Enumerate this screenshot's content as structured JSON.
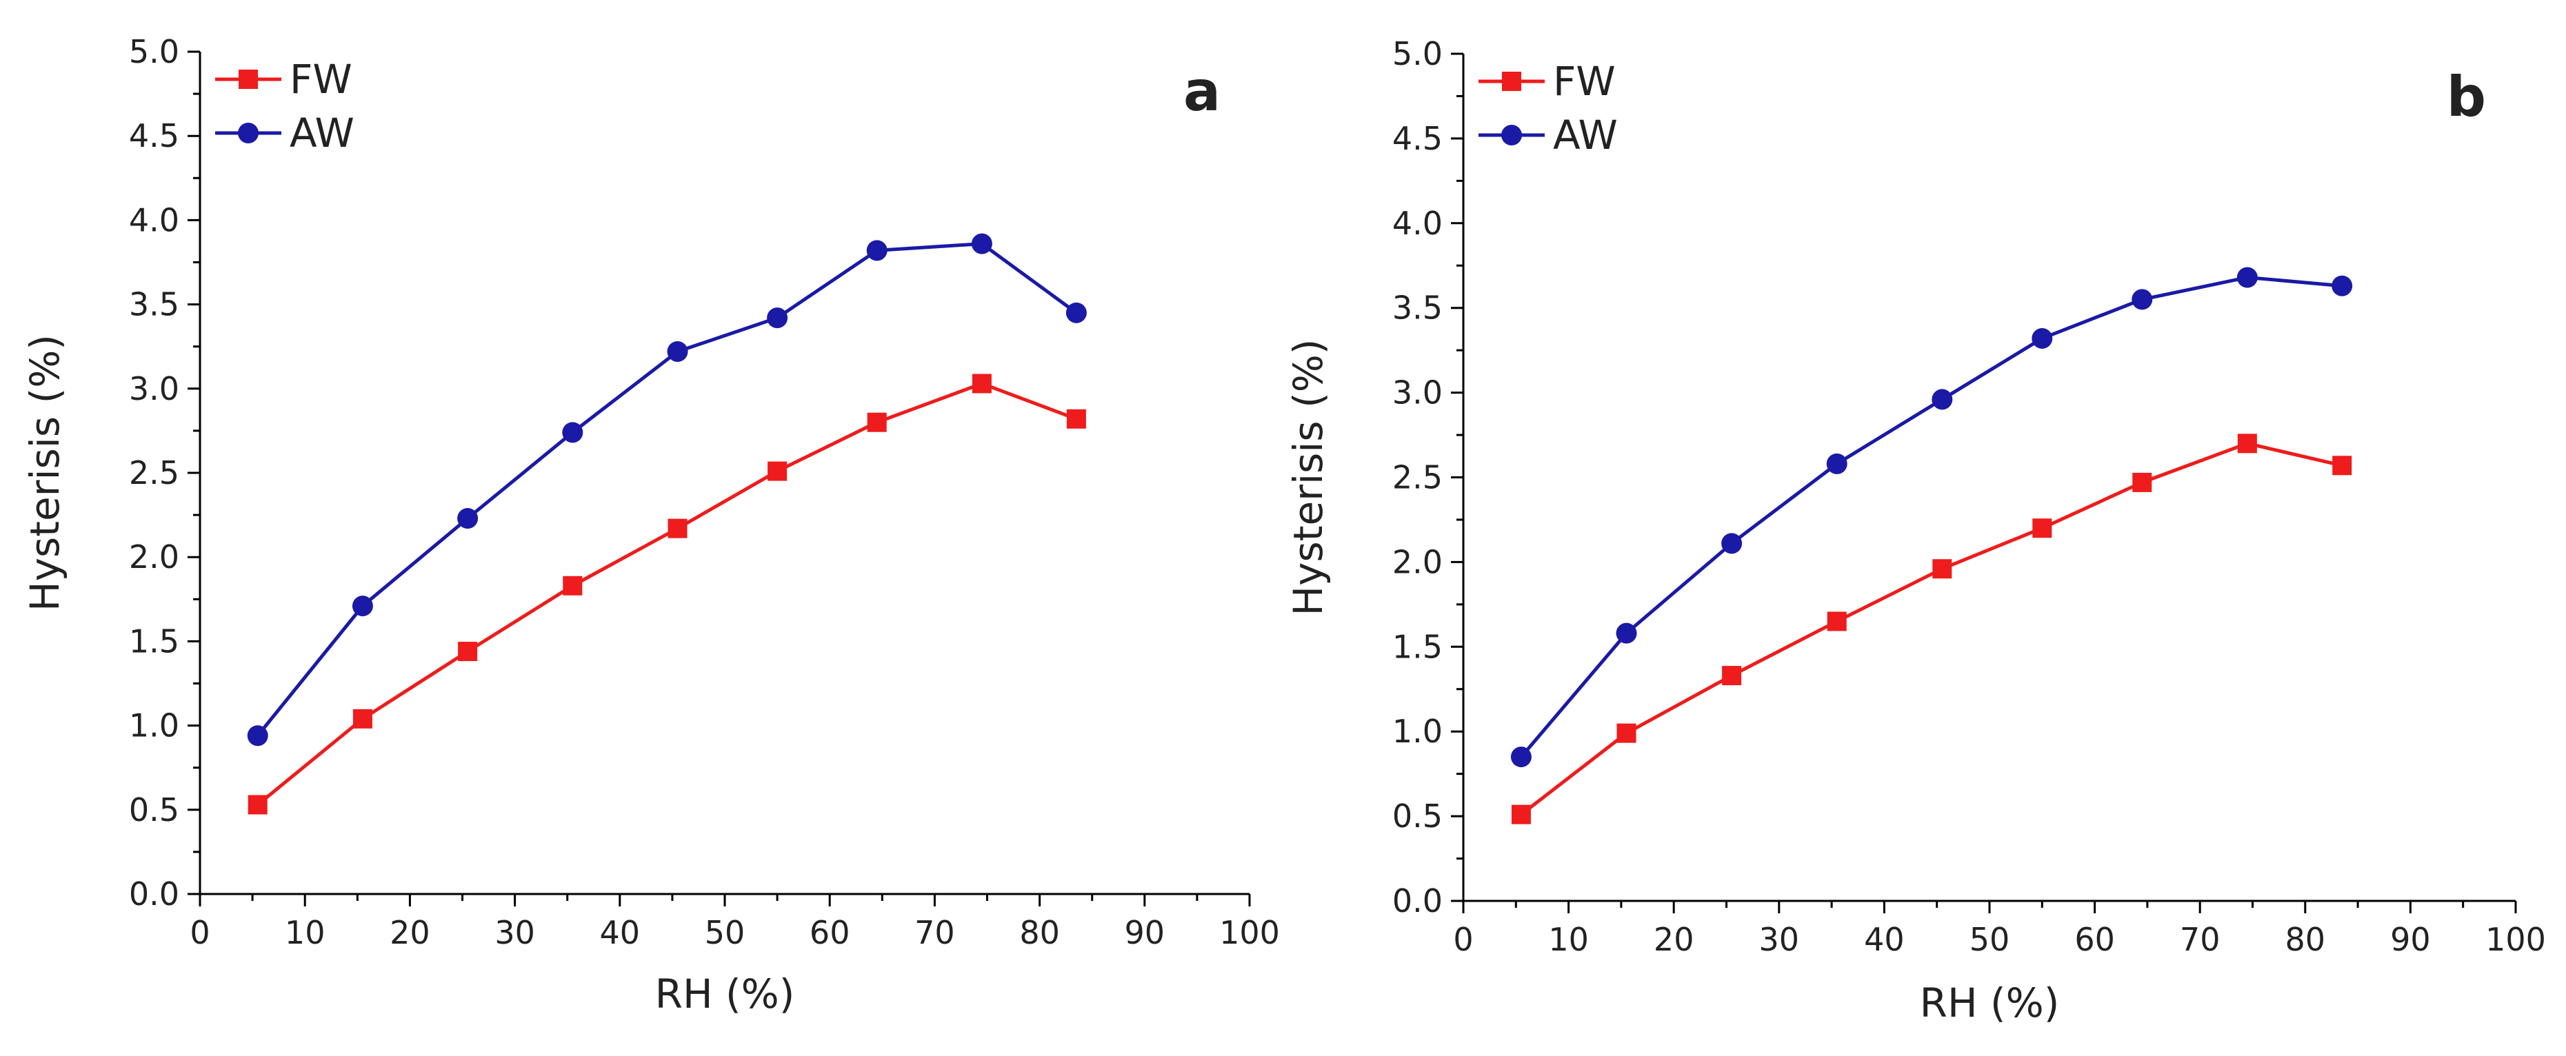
{
  "figure": {
    "panels": [
      "a",
      "b"
    ]
  },
  "colors": {
    "FW": "#ee1c1c",
    "AW": "#1a1aa6",
    "axis": "#000000",
    "text": "#222222"
  },
  "chart_data": [
    {
      "type": "line",
      "panel_label": "a",
      "xlabel": "RH (%)",
      "ylabel": "Hysterisis (%)",
      "xlim": [
        0,
        100
      ],
      "ylim": [
        0,
        5.0
      ],
      "xticks": [
        "0",
        "10",
        "20",
        "30",
        "40",
        "50",
        "60",
        "70",
        "80",
        "90",
        "100"
      ],
      "yticks": [
        "0.0",
        "0.5",
        "1.0",
        "1.5",
        "2.0",
        "2.5",
        "3.0",
        "3.5",
        "4.0",
        "4.5",
        "5.0"
      ],
      "legend_position": "top-left",
      "grid": false,
      "series": [
        {
          "name": "FW",
          "marker": "square",
          "x": [
            5.5,
            15.5,
            25.5,
            35.5,
            45.5,
            55,
            64.5,
            74.5,
            83.5
          ],
          "y": [
            0.53,
            1.04,
            1.44,
            1.83,
            2.17,
            2.51,
            2.8,
            3.03,
            2.82
          ]
        },
        {
          "name": "AW",
          "marker": "circle",
          "x": [
            5.5,
            15.5,
            25.5,
            35.5,
            45.5,
            55,
            64.5,
            74.5,
            83.5
          ],
          "y": [
            0.94,
            1.71,
            2.23,
            2.74,
            3.22,
            3.42,
            3.82,
            3.86,
            3.45
          ]
        }
      ]
    },
    {
      "type": "line",
      "panel_label": "b",
      "xlabel": "RH (%)",
      "ylabel": "Hysterisis (%)",
      "xlim": [
        0,
        100
      ],
      "ylim": [
        0,
        5.0
      ],
      "xticks": [
        "0",
        "10",
        "20",
        "30",
        "40",
        "50",
        "60",
        "70",
        "80",
        "90",
        "100"
      ],
      "yticks": [
        "0.0",
        "0.5",
        "1.0",
        "1.5",
        "2.0",
        "2.5",
        "3.0",
        "3.5",
        "4.0",
        "4.5",
        "5.0"
      ],
      "legend_position": "top-left",
      "grid": false,
      "series": [
        {
          "name": "FW",
          "marker": "square",
          "x": [
            5.5,
            15.5,
            25.5,
            35.5,
            45.5,
            55,
            64.5,
            74.5,
            83.5
          ],
          "y": [
            0.51,
            0.99,
            1.33,
            1.65,
            1.96,
            2.2,
            2.47,
            2.7,
            2.57
          ]
        },
        {
          "name": "AW",
          "marker": "circle",
          "x": [
            5.5,
            15.5,
            25.5,
            35.5,
            45.5,
            55,
            64.5,
            74.5,
            83.5
          ],
          "y": [
            0.85,
            1.58,
            2.11,
            2.58,
            2.96,
            3.32,
            3.55,
            3.68,
            3.63
          ]
        }
      ]
    }
  ]
}
